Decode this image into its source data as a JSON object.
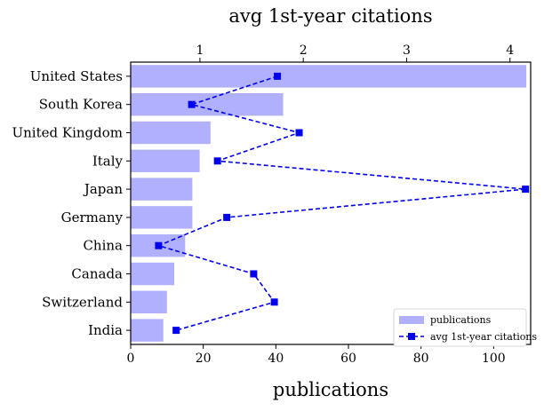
{
  "chart_data": {
    "type": "bar",
    "orientation": "horizontal",
    "categories": [
      "United States",
      "South Korea",
      "United Kingdom",
      "Italy",
      "Japan",
      "Germany",
      "China",
      "Canada",
      "Switzerland",
      "India"
    ],
    "series": [
      {
        "name": "publications",
        "type": "bar",
        "axis": "bottom",
        "color": "#b0b0ff",
        "values": [
          109,
          42,
          22,
          19,
          17,
          17,
          15,
          12,
          10,
          9
        ]
      },
      {
        "name": "avg 1st-year citations",
        "type": "line",
        "axis": "top",
        "color": "#0000ee",
        "linestyle": "dashed",
        "marker": "square",
        "values": [
          1.75,
          0.92,
          1.96,
          1.17,
          4.15,
          1.26,
          0.6,
          1.52,
          1.72,
          0.77
        ]
      }
    ],
    "xlabel": "publications",
    "x2label": "avg 1st-year citations",
    "xlim": [
      0,
      110.2
    ],
    "x2lim": [
      0.33,
      4.2
    ],
    "xticks": [
      0,
      20,
      40,
      60,
      80,
      100
    ],
    "x2ticks": [
      1,
      2,
      3,
      4
    ],
    "grid": false,
    "legend": "bottom-right"
  }
}
